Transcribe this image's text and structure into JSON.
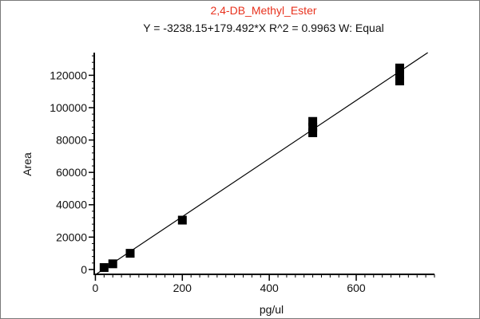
{
  "chart_data": {
    "type": "scatter",
    "title": "2,4-DB_Methyl_Ester",
    "subtitle": "Y = -3238.15+179.492*X   R^2 = 0.9963   W: Equal",
    "xlabel": "pg/ul",
    "ylabel": "Area",
    "xlim": [
      -10,
      780
    ],
    "ylim": [
      -3000,
      134000
    ],
    "x_ticks": [
      0,
      200,
      400,
      600
    ],
    "y_ticks": [
      0,
      20000,
      40000,
      60000,
      80000,
      100000,
      120000
    ],
    "x_minor_step": 20,
    "y_minor_step": 4000,
    "grid": false,
    "legend": "none",
    "colors": {
      "title": "#e8321e",
      "marker": "#000000",
      "line": "#000000"
    },
    "series": [
      {
        "values": [
          {
            "x": 20,
            "y": 1200
          },
          {
            "x": 40,
            "y": 3500
          },
          {
            "x": 80,
            "y": 10000
          },
          {
            "x": 200,
            "y": 30500
          },
          {
            "x": 500,
            "y": 84500
          },
          {
            "x": 500,
            "y": 88000
          },
          {
            "x": 500,
            "y": 91500
          },
          {
            "x": 700,
            "y": 116500
          },
          {
            "x": 700,
            "y": 120500
          },
          {
            "x": 700,
            "y": 124500
          }
        ]
      }
    ],
    "fit_line": {
      "intercept": -3238.15,
      "slope": 179.492,
      "x_range": [
        0,
        780
      ]
    }
  }
}
